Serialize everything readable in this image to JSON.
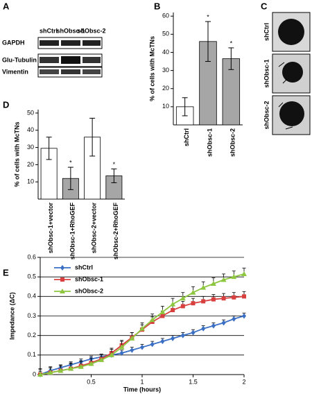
{
  "panel_labels": [
    "A",
    "B",
    "C",
    "D",
    "E"
  ],
  "blot": {
    "lanes": [
      "shCtrl",
      "shObsc-1",
      "shObsc-2"
    ],
    "rows": [
      "GAPDH",
      "Glu-Tubulin",
      "Vimentin"
    ]
  },
  "images": {
    "labels": [
      "shCtrl",
      "shObsc-1",
      "shObsc-2"
    ]
  },
  "chart_data": [
    {
      "type": "bar",
      "ylabel": "% of cells with McTNs",
      "categories": [
        "shCtrl",
        "shObsc-1",
        "shObsc-2"
      ],
      "values": [
        10,
        46,
        36.5
      ],
      "errors": [
        5,
        11,
        6
      ],
      "colors": [
        "#ffffff",
        "#a6a6a6",
        "#a6a6a6"
      ],
      "significance": [
        null,
        "*",
        "*"
      ],
      "ylim": [
        0,
        62
      ],
      "yticks": [
        10,
        20,
        30,
        40,
        50,
        60
      ]
    },
    {
      "type": "bar",
      "ylabel": "% of cells with McTNs",
      "categories": [
        "shObsc-1+vector",
        "shObsc-1+RhoGEF",
        "shObsc-2+vector",
        "shObsc-2+RhoGEF"
      ],
      "values": [
        29.5,
        12,
        36,
        13.5
      ],
      "errors": [
        6.5,
        6.5,
        11,
        4
      ],
      "colors": [
        "#ffffff",
        "#a6a6a6",
        "#ffffff",
        "#a6a6a6"
      ],
      "significance": [
        null,
        "*",
        null,
        "*"
      ],
      "ylim": [
        0,
        52
      ],
      "yticks": [
        10,
        20,
        30,
        40,
        50
      ]
    },
    {
      "type": "line",
      "xlabel": "Time (hours)",
      "ylabel": "Impedance (ΔC)",
      "x": [
        0,
        0.1,
        0.2,
        0.3,
        0.4,
        0.5,
        0.6,
        0.7,
        0.8,
        0.9,
        1.0,
        1.1,
        1.2,
        1.3,
        1.4,
        1.5,
        1.6,
        1.7,
        1.8,
        1.9,
        2.0
      ],
      "series": [
        {
          "name": "shCtrl",
          "color": "#3a6fc4",
          "marker": "diamond",
          "values": [
            0,
            0.02,
            0.035,
            0.05,
            0.065,
            0.08,
            0.09,
            0.1,
            0.11,
            0.125,
            0.14,
            0.155,
            0.17,
            0.185,
            0.2,
            0.215,
            0.235,
            0.25,
            0.265,
            0.285,
            0.3
          ],
          "errors": [
            0.015,
            0.015,
            0.015,
            0.015,
            0.015,
            0.015,
            0.015,
            0.015,
            0.015,
            0.015,
            0.015,
            0.015,
            0.015,
            0.015,
            0.015,
            0.015,
            0.015,
            0.015,
            0.015,
            0.015,
            0.015
          ]
        },
        {
          "name": "shObsc-1",
          "color": "#d8403f",
          "marker": "square",
          "values": [
            0,
            0.01,
            0.02,
            0.03,
            0.045,
            0.06,
            0.08,
            0.11,
            0.15,
            0.19,
            0.23,
            0.27,
            0.3,
            0.33,
            0.35,
            0.365,
            0.375,
            0.385,
            0.39,
            0.395,
            0.4
          ],
          "errors": [
            0.025,
            0.025,
            0.025,
            0.025,
            0.025,
            0.025,
            0.025,
            0.025,
            0.025,
            0.025,
            0.025,
            0.025,
            0.025,
            0.025,
            0.025,
            0.025,
            0.025,
            0.025,
            0.025,
            0.025,
            0.025
          ]
        },
        {
          "name": "shObsc-2",
          "color": "#8dc63f",
          "marker": "triangle",
          "values": [
            0,
            0.01,
            0.02,
            0.03,
            0.04,
            0.055,
            0.075,
            0.1,
            0.14,
            0.185,
            0.235,
            0.28,
            0.32,
            0.36,
            0.39,
            0.42,
            0.445,
            0.465,
            0.485,
            0.5,
            0.515
          ],
          "errors": [
            0.03,
            0.03,
            0.03,
            0.03,
            0.03,
            0.03,
            0.03,
            0.03,
            0.03,
            0.03,
            0.03,
            0.03,
            0.03,
            0.03,
            0.03,
            0.03,
            0.03,
            0.03,
            0.03,
            0.03,
            0.03
          ]
        }
      ],
      "xlim": [
        0,
        2
      ],
      "xticks": [
        0.5,
        1,
        1.5,
        2
      ],
      "ylim": [
        0,
        0.6
      ],
      "yticks": [
        0,
        0.1,
        0.2,
        0.3,
        0.4,
        0.5,
        0.6
      ],
      "grid": true,
      "legend": "upper left"
    }
  ]
}
